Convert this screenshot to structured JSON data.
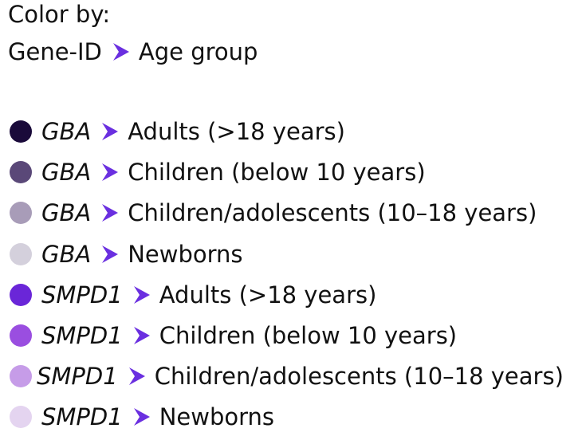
{
  "header": {
    "title": "Color by:",
    "path_from": "Gene-ID",
    "path_to": "Age group",
    "chevron_icon": "chevron-right-icon",
    "accent_color": "#6a2fe0"
  },
  "legend": {
    "items": [
      {
        "gene": "GBA",
        "group": "Adults (>18 years)",
        "color": "#1a0a3a"
      },
      {
        "gene": "GBA",
        "group": "Children (below 10 years)",
        "color": "#5a4878"
      },
      {
        "gene": "GBA",
        "group": "Children/adolescents (10–18 years)",
        "color": "#a89cb8"
      },
      {
        "gene": "GBA",
        "group": "Newborns",
        "color": "#d4d0dc"
      },
      {
        "gene": "SMPD1",
        "group": "Adults (>18 years)",
        "color": "#6a26d8"
      },
      {
        "gene": "SMPD1",
        "group": "Children (below 10 years)",
        "color": "#9a4ee0"
      },
      {
        "gene": "SMPD1",
        "group": "Children/adolescents (10–18 years)",
        "color": "#c69ce8"
      },
      {
        "gene": "SMPD1",
        "group": "Newborns",
        "color": "#e4d4f0"
      }
    ]
  }
}
